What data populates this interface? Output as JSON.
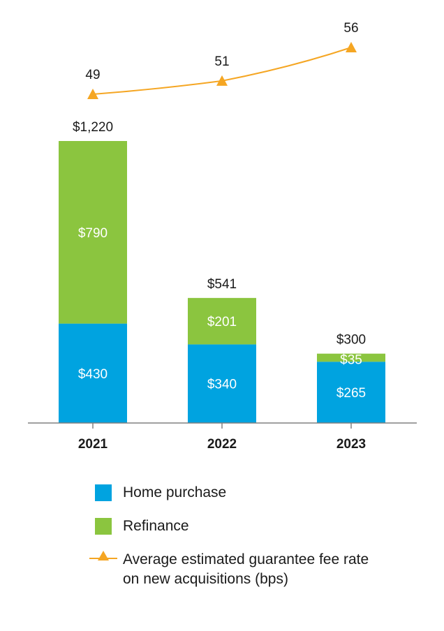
{
  "colors": {
    "home_purchase": "#00a3e0",
    "refinance": "#8bc53f",
    "fee_line": "#f5a623",
    "axis": "#808080"
  },
  "chart_data": {
    "type": "bar",
    "stacked": true,
    "categories": [
      "2021",
      "2022",
      "2023"
    ],
    "series": [
      {
        "name": "Home purchase",
        "values": [
          430,
          340,
          265
        ],
        "labels": [
          "$430",
          "$340",
          "$265"
        ]
      },
      {
        "name": "Refinance",
        "values": [
          790,
          201,
          35
        ],
        "labels": [
          "$790",
          "$201",
          "$35"
        ]
      }
    ],
    "totals": [
      1220,
      541,
      300
    ],
    "total_labels": [
      "$1,220",
      "$541",
      "$300"
    ],
    "line_series": {
      "name": "Average estimated guarantee fee rate on new acquisitions (bps)",
      "values": [
        49,
        51,
        56
      ],
      "labels": [
        "49",
        "51",
        "56"
      ]
    },
    "legend_position": "bottom",
    "grid": false
  },
  "legend": {
    "home_purchase": "Home purchase",
    "refinance": "Refinance",
    "fee_line_line1": "Average estimated guarantee fee rate",
    "fee_line_line2": "on new acquisitions (bps)"
  }
}
